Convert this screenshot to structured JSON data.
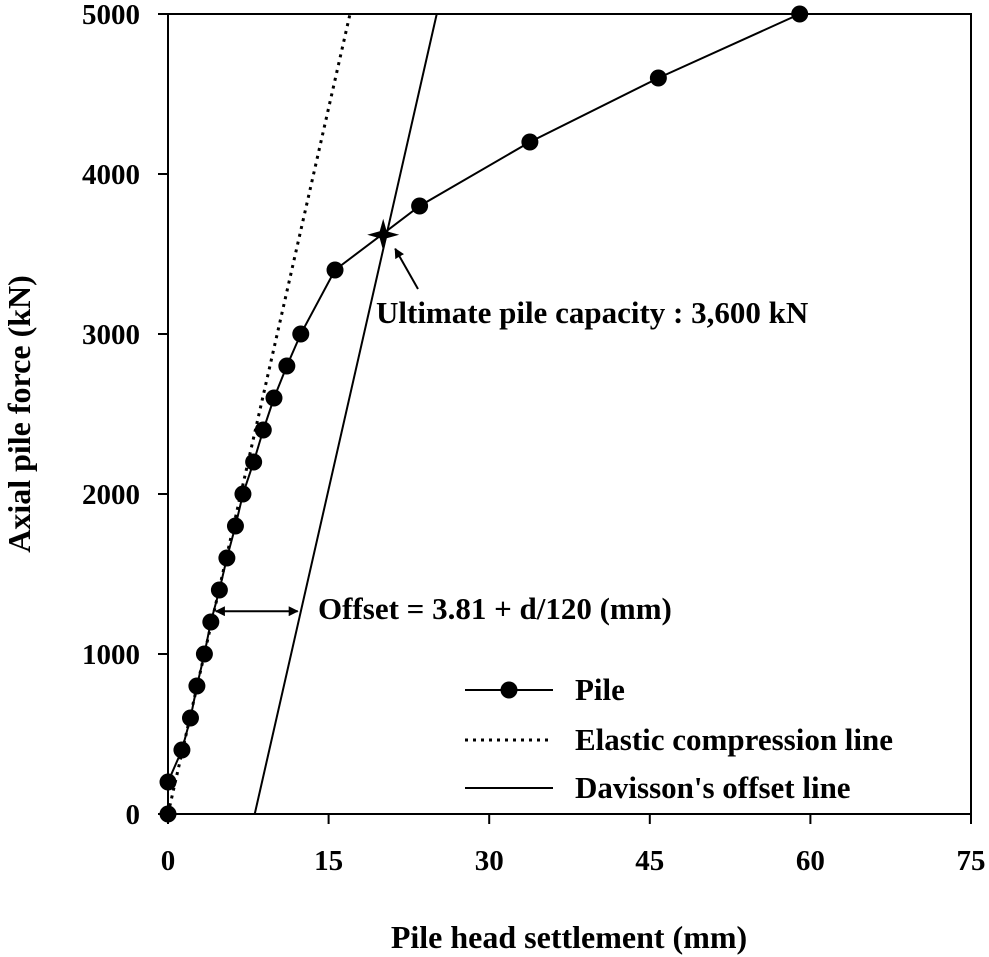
{
  "chart_data": {
    "type": "line",
    "title": "",
    "xlabel": "Pile head settlement (mm)",
    "ylabel": "Axial pile force (kN)",
    "xlim": [
      0,
      75
    ],
    "ylim": [
      0,
      5000
    ],
    "xticks": [
      0,
      15,
      30,
      45,
      60,
      75
    ],
    "yticks": [
      0,
      1000,
      2000,
      3000,
      4000,
      5000
    ],
    "grid": false,
    "legend_position": "bottom-right",
    "series": [
      {
        "name": "Pile",
        "style": "solid-with-circle-markers",
        "x": [
          0.0,
          0.0,
          1.3,
          2.1,
          2.7,
          3.4,
          4.0,
          4.8,
          5.5,
          6.3,
          7.0,
          8.0,
          8.9,
          9.9,
          11.1,
          12.4,
          15.6,
          23.5,
          33.8,
          45.8,
          59.0
        ],
        "y": [
          0,
          200,
          400,
          600,
          800,
          1000,
          1200,
          1400,
          1600,
          1800,
          2000,
          2200,
          2400,
          2600,
          2800,
          3000,
          3400,
          3800,
          4200,
          4600,
          5000
        ]
      },
      {
        "name": "Elastic compression line",
        "style": "dotted",
        "x": [
          0,
          17.0
        ],
        "y": [
          0,
          5000
        ]
      },
      {
        "name": "Davisson's offset line",
        "style": "solid",
        "x": [
          8.1,
          25.1
        ],
        "y": [
          0,
          5000
        ]
      }
    ],
    "annotations": [
      {
        "text": "Ultimate pile capacity : 3,600 kN",
        "x": 20.1,
        "y": 3620,
        "marker": "star"
      },
      {
        "text": "Offset = 3.81 + d/120 (mm)",
        "arrow_from_x": 4.1,
        "arrow_to_x": 12.3,
        "arrow_y": 1280
      }
    ]
  }
}
